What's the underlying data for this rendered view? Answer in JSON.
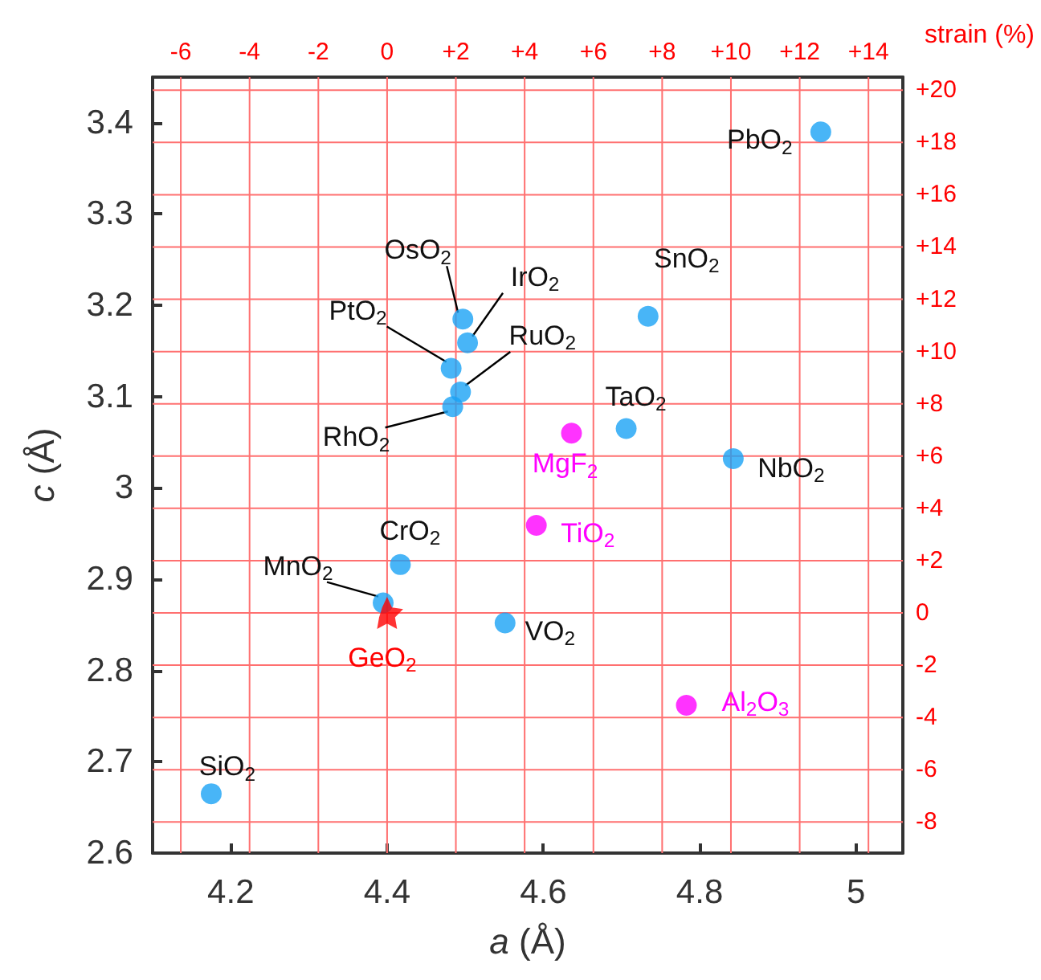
{
  "chart_data": {
    "type": "scatter",
    "xlabel": "a (Å)",
    "ylabel": "c (Å)",
    "x2label": "strain (%)",
    "xlim": [
      4.1,
      5.06
    ],
    "xticks": [
      4.2,
      4.4,
      4.6,
      4.8,
      5
    ],
    "ylim": [
      2.6,
      3.45
    ],
    "yticks": [
      2.6,
      2.7,
      2.8,
      2.9,
      3,
      3.1,
      3.2,
      3.3,
      3.4
    ],
    "x2lim": [
      -6.82,
      15.0
    ],
    "x2ticks": [
      -6,
      -4,
      -2,
      0,
      {
        "value": 2,
        "label": "+2"
      },
      {
        "value": 4,
        "label": "+4"
      },
      {
        "value": 6,
        "label": "+6"
      },
      {
        "value": 8,
        "label": "+8"
      },
      {
        "value": 10,
        "label": "+10"
      },
      {
        "value": 12,
        "label": "+12"
      },
      {
        "value": 14,
        "label": "+14"
      }
    ],
    "y2lim": [
      -9.19,
      20.5
    ],
    "y2ticks": [
      -8,
      -6,
      -4,
      -2,
      0,
      {
        "value": 2,
        "label": "+2"
      },
      {
        "value": 4,
        "label": "+4"
      },
      {
        "value": 6,
        "label": "+6"
      },
      {
        "value": 8,
        "label": "+8"
      },
      {
        "value": 10,
        "label": "+10"
      },
      {
        "value": 12,
        "label": "+12"
      },
      {
        "value": 14,
        "label": "+14"
      },
      {
        "value": 16,
        "label": "+16"
      },
      {
        "value": 18,
        "label": "+18"
      },
      {
        "value": 20,
        "label": "+20"
      }
    ],
    "grid": true,
    "marker": "circle",
    "series": [
      {
        "color": "#1aa3f5",
        "x": [
          4.955,
          4.497,
          4.503,
          4.482,
          4.494,
          4.484,
          4.734,
          4.706,
          4.843,
          4.417,
          4.395,
          4.551,
          4.175
        ],
        "values": [
          3.39,
          3.185,
          3.159,
          3.131,
          3.105,
          3.089,
          3.188,
          3.065,
          3.032,
          2.916,
          2.874,
          2.852,
          2.665
        ]
      },
      {
        "color": "#ff00ff",
        "x": [
          4.636,
          4.591,
          4.783
        ],
        "values": [
          3.06,
          2.959,
          2.762
        ]
      },
      {
        "color": "#ff0000",
        "marker": "star",
        "x": [
          4.4
        ],
        "values": [
          2.863
        ]
      }
    ],
    "annotations": [
      {
        "text": "PbO$_{2}$",
        "x": 4.955,
        "y": 3.39
      },
      {
        "text": "OsO$_{2}$",
        "x": 4.497,
        "y": 3.185
      },
      {
        "text": "IrO$_{2}$",
        "x": 4.503,
        "y": 3.159
      },
      {
        "text": "PtO$_{2}$",
        "x": 4.482,
        "y": 3.131
      },
      {
        "text": "RuO$_{2}$",
        "x": 4.494,
        "y": 3.105
      },
      {
        "text": "RhO$_{2}$",
        "x": 4.484,
        "y": 3.089
      },
      {
        "text": "SnO$_{2}$",
        "x": 4.734,
        "y": 3.188
      },
      {
        "text": "TaO$_{2}$",
        "x": 4.706,
        "y": 3.065
      },
      {
        "text": "NbO$_{2}$",
        "x": 4.843,
        "y": 3.032
      },
      {
        "text": "CrO$_{2}$",
        "x": 4.417,
        "y": 2.916
      },
      {
        "text": "MnO$_{2}$",
        "x": 4.395,
        "y": 2.874
      },
      {
        "text": "VO$_{2}$",
        "x": 4.551,
        "y": 2.852
      },
      {
        "text": "SiO$_{2}$",
        "x": 4.175,
        "y": 2.665
      },
      {
        "text": "MgF$_{2}$",
        "x": 4.636,
        "y": 3.06
      },
      {
        "text": "TiO$_{2}$",
        "x": 4.591,
        "y": 2.959
      },
      {
        "text": "Al$_{2}$O$_{3}$",
        "x": 4.783,
        "y": 2.762
      },
      {
        "text": "GeO$_{2}$",
        "x": 4.4,
        "y": 2.863
      }
    ]
  }
}
